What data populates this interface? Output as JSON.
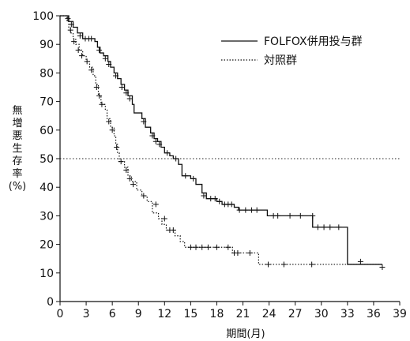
{
  "chart_data": {
    "type": "line",
    "title": "",
    "xlabel": "期間(月)",
    "ylabel": "無増悪生存率(%)",
    "xlim": [
      0,
      39
    ],
    "ylim": [
      0,
      100
    ],
    "xticks": [
      0,
      3,
      6,
      9,
      12,
      15,
      18,
      21,
      24,
      27,
      30,
      33,
      36,
      39
    ],
    "yticks": [
      0,
      10,
      20,
      30,
      40,
      50,
      60,
      70,
      80,
      90,
      100
    ],
    "reference_line": {
      "y": 50,
      "style": "dotted"
    },
    "legend": {
      "position": "top-right"
    },
    "series": [
      {
        "name": "FOLFOX併用投与群",
        "style": "solid",
        "steps": [
          [
            0,
            100
          ],
          [
            1.0,
            98
          ],
          [
            1.5,
            96
          ],
          [
            2.0,
            94
          ],
          [
            2.6,
            92
          ],
          [
            4.0,
            91
          ],
          [
            4.3,
            89
          ],
          [
            4.6,
            87
          ],
          [
            5.0,
            86
          ],
          [
            5.5,
            84
          ],
          [
            5.8,
            82
          ],
          [
            6.2,
            80
          ],
          [
            6.6,
            78
          ],
          [
            7.0,
            76
          ],
          [
            7.4,
            74
          ],
          [
            7.8,
            72
          ],
          [
            8.3,
            69
          ],
          [
            8.5,
            66
          ],
          [
            9.4,
            64
          ],
          [
            9.8,
            61
          ],
          [
            10.4,
            59
          ],
          [
            10.8,
            57
          ],
          [
            11.2,
            56
          ],
          [
            11.6,
            54
          ],
          [
            12.0,
            52
          ],
          [
            12.6,
            51
          ],
          [
            13.0,
            50
          ],
          [
            13.6,
            48
          ],
          [
            14.0,
            44
          ],
          [
            15.0,
            43
          ],
          [
            15.6,
            41
          ],
          [
            16.3,
            38
          ],
          [
            16.8,
            36
          ],
          [
            18.0,
            35
          ],
          [
            18.6,
            34
          ],
          [
            20.0,
            33
          ],
          [
            20.5,
            32
          ],
          [
            23.8,
            30
          ],
          [
            29.0,
            26
          ],
          [
            33.0,
            13
          ],
          [
            37.0,
            13
          ]
        ],
        "censored": [
          [
            0.9,
            99
          ],
          [
            1.3,
            97
          ],
          [
            2.3,
            93
          ],
          [
            2.9,
            92
          ],
          [
            3.3,
            92
          ],
          [
            3.6,
            92
          ],
          [
            4.5,
            88
          ],
          [
            5.2,
            85
          ],
          [
            5.6,
            83
          ],
          [
            6.4,
            79
          ],
          [
            7.1,
            75
          ],
          [
            7.6,
            73
          ],
          [
            8.0,
            71
          ],
          [
            9.6,
            63
          ],
          [
            10.6,
            58
          ],
          [
            11.0,
            56
          ],
          [
            11.4,
            55
          ],
          [
            12.3,
            52
          ],
          [
            13.3,
            50
          ],
          [
            14.4,
            44
          ],
          [
            15.3,
            43
          ],
          [
            16.5,
            37
          ],
          [
            17.3,
            36
          ],
          [
            17.8,
            36
          ],
          [
            18.3,
            35
          ],
          [
            18.9,
            34
          ],
          [
            19.3,
            34
          ],
          [
            19.7,
            34
          ],
          [
            20.6,
            32
          ],
          [
            21.3,
            32
          ],
          [
            22.0,
            32
          ],
          [
            22.6,
            32
          ],
          [
            24.5,
            30
          ],
          [
            25.0,
            30
          ],
          [
            26.4,
            30
          ],
          [
            27.6,
            30
          ],
          [
            29.0,
            30
          ],
          [
            29.6,
            26
          ],
          [
            30.3,
            26
          ],
          [
            31.0,
            26
          ],
          [
            32.0,
            26
          ],
          [
            37.0,
            12
          ]
        ]
      },
      {
        "name": "対照群",
        "style": "dotted",
        "steps": [
          [
            0,
            100
          ],
          [
            0.8,
            98
          ],
          [
            1.0,
            96
          ],
          [
            1.2,
            94
          ],
          [
            1.5,
            92
          ],
          [
            1.8,
            90
          ],
          [
            2.2,
            88
          ],
          [
            2.6,
            86
          ],
          [
            3.0,
            84
          ],
          [
            3.4,
            82
          ],
          [
            3.8,
            79
          ],
          [
            4.1,
            76
          ],
          [
            4.4,
            72
          ],
          [
            4.7,
            69
          ],
          [
            5.2,
            67
          ],
          [
            5.4,
            64
          ],
          [
            5.8,
            61
          ],
          [
            6.2,
            58
          ],
          [
            6.4,
            55
          ],
          [
            6.6,
            52
          ],
          [
            6.8,
            49
          ],
          [
            7.4,
            47
          ],
          [
            7.8,
            44
          ],
          [
            8.2,
            42
          ],
          [
            8.8,
            39
          ],
          [
            9.4,
            37
          ],
          [
            10.0,
            35
          ],
          [
            10.6,
            31
          ],
          [
            11.3,
            29
          ],
          [
            11.7,
            27
          ],
          [
            12.2,
            25
          ],
          [
            13.2,
            23
          ],
          [
            13.8,
            21
          ],
          [
            14.3,
            19
          ],
          [
            19.8,
            17
          ],
          [
            22.8,
            13
          ],
          [
            37.0,
            13
          ]
        ],
        "censored": [
          [
            1.2,
            95
          ],
          [
            1.6,
            91
          ],
          [
            2.1,
            88
          ],
          [
            2.5,
            86
          ],
          [
            3.1,
            84
          ],
          [
            3.6,
            81
          ],
          [
            4.2,
            75
          ],
          [
            4.5,
            72
          ],
          [
            4.8,
            69
          ],
          [
            5.6,
            63
          ],
          [
            6.0,
            60
          ],
          [
            6.5,
            54
          ],
          [
            7.0,
            49
          ],
          [
            7.6,
            46
          ],
          [
            8.0,
            43
          ],
          [
            8.4,
            41
          ],
          [
            9.6,
            37
          ],
          [
            11.0,
            34
          ],
          [
            12.0,
            29
          ],
          [
            12.6,
            25
          ],
          [
            13.0,
            25
          ],
          [
            15.0,
            19
          ],
          [
            15.6,
            19
          ],
          [
            16.3,
            19
          ],
          [
            17.0,
            19
          ],
          [
            18.0,
            19
          ],
          [
            19.3,
            19
          ],
          [
            20.0,
            17
          ],
          [
            20.4,
            17
          ],
          [
            21.8,
            17
          ],
          [
            23.9,
            13
          ],
          [
            25.7,
            13
          ],
          [
            28.9,
            13
          ],
          [
            34.5,
            14
          ]
        ]
      }
    ]
  }
}
